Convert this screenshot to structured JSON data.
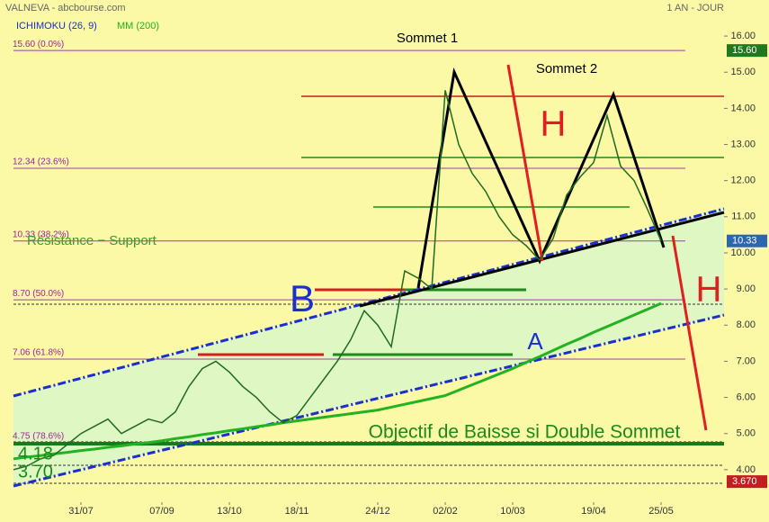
{
  "chart_data": {
    "type": "line",
    "title": "VALNEVA - abcbourse.com",
    "period": "1 AN - JOUR",
    "indicator_label": "ICHIMOKU (26, 9)",
    "categories": [
      null,
      null,
      null,
      null,
      null,
      "31/07",
      null,
      null,
      null,
      null,
      null,
      "07/09",
      null,
      null,
      null,
      null,
      "13/10",
      null,
      null,
      null,
      null,
      "18/11",
      null,
      null,
      null,
      null,
      null,
      "24/12",
      null,
      null,
      null,
      null,
      "02/02",
      null,
      null,
      null,
      null,
      "10/03",
      null,
      null,
      null,
      null,
      null,
      "19/04",
      null,
      null,
      null,
      null,
      "25/05"
    ],
    "price": {
      "color": "#1f6b1f",
      "values": [
        4.0,
        4.1,
        4.3,
        4.4,
        4.7,
        5.0,
        5.2,
        5.4,
        5.0,
        5.2,
        5.4,
        5.3,
        5.6,
        6.3,
        6.8,
        7.0,
        6.7,
        6.3,
        6.0,
        5.6,
        5.3,
        5.5,
        6.0,
        6.5,
        7.0,
        7.6,
        8.4,
        8.0,
        7.4,
        9.5,
        9.3,
        9.0,
        14.5,
        13.0,
        12.2,
        11.7,
        11.0,
        10.5,
        10.2,
        9.8,
        10.4,
        11.6,
        12.1,
        12.5,
        13.8,
        12.4,
        12.0,
        11.2,
        10.33
      ]
    },
    "moving_average": {
      "name": "MM (200)",
      "color": "#22b222",
      "values": [
        4.3,
        4.35,
        4.39,
        4.44,
        4.48,
        4.53,
        4.57,
        4.62,
        4.66,
        4.71,
        4.75,
        4.8,
        4.86,
        4.91,
        4.97,
        5.02,
        5.08,
        5.13,
        5.19,
        5.24,
        5.3,
        5.35,
        5.4,
        5.45,
        5.5,
        5.55,
        5.6,
        5.65,
        5.73,
        5.81,
        5.89,
        5.97,
        6.05,
        6.2,
        6.35,
        6.5,
        6.65,
        6.8,
        6.97,
        7.13,
        7.3,
        7.47,
        7.63,
        7.8,
        7.96,
        8.12,
        8.28,
        8.44,
        8.6
      ]
    },
    "ylim": [
      3.1,
      16.5
    ],
    "yticks": [
      {
        "value": 4,
        "label": "4.00"
      },
      {
        "value": 5,
        "label": "5.00"
      },
      {
        "value": 6,
        "label": "6.00"
      },
      {
        "value": 7,
        "label": "7.00"
      },
      {
        "value": 8,
        "label": "8.00"
      },
      {
        "value": 9,
        "label": "9.00"
      },
      {
        "value": 10,
        "label": "10.00"
      },
      {
        "value": 11,
        "label": "11.00"
      },
      {
        "value": 12,
        "label": "12.00"
      },
      {
        "value": 13,
        "label": "13.00"
      },
      {
        "value": 14,
        "label": "14.00"
      },
      {
        "value": 15,
        "label": "15.00"
      },
      {
        "value": 16,
        "label": "16.00"
      }
    ],
    "fib_levels": [
      {
        "value": 15.6,
        "label": "15.60 (0.0%)"
      },
      {
        "value": 12.34,
        "label": "12.34 (23.6%)"
      },
      {
        "value": 10.33,
        "label": "10.33 (38.2%)"
      },
      {
        "value": 8.7,
        "label": "8.70 (50.0%)"
      },
      {
        "value": 7.06,
        "label": "7.06 (61.8%)"
      },
      {
        "value": 4.75,
        "label": "4.75 (78.6%)"
      }
    ],
    "price_tags": [
      {
        "value": 15.6,
        "label": "15.60",
        "color": "#1f7a1f"
      },
      {
        "value": 10.33,
        "label": "10.33",
        "color": "#2c66b0"
      },
      {
        "value": 3.67,
        "label": "3.670",
        "color": "#c02020"
      }
    ],
    "annotations": [
      "Sommet 1",
      "Sommet 2",
      "H",
      "H",
      "B",
      "A",
      "Objectif de Baisse si Double Sommet",
      "Résistance − Support",
      "3.70",
      "4.18"
    ]
  }
}
